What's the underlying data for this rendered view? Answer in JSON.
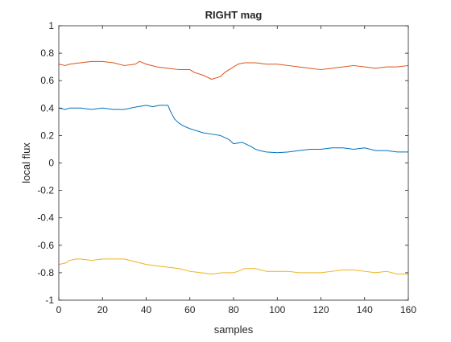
{
  "chart_data": {
    "type": "line",
    "title": "RIGHT mag",
    "xlabel": "samples",
    "ylabel": "local flux",
    "xlim": [
      0,
      160
    ],
    "ylim": [
      -1,
      1
    ],
    "xticks": [
      0,
      20,
      40,
      60,
      80,
      100,
      120,
      140,
      160
    ],
    "yticks": [
      -1,
      -0.8,
      -0.6,
      -0.4,
      -0.2,
      0,
      0.2,
      0.4,
      0.6,
      0.8,
      1
    ],
    "xtick_labels": [
      "0",
      "20",
      "40",
      "60",
      "80",
      "100",
      "120",
      "140",
      "160"
    ],
    "ytick_labels": [
      "-1",
      "-0.8",
      "-0.6",
      "-0.4",
      "-0.2",
      "0",
      "0.2",
      "0.4",
      "0.6",
      "0.8",
      "1"
    ],
    "grid": false,
    "box": true,
    "series": [
      {
        "color": "#0072BD",
        "x": [
          0,
          3,
          5,
          10,
          15,
          20,
          25,
          30,
          33,
          36,
          40,
          43,
          46,
          50,
          51,
          52,
          53,
          55,
          57,
          60,
          62,
          64,
          66,
          70,
          74,
          78,
          80,
          84,
          88,
          90,
          92,
          95,
          100,
          105,
          110,
          115,
          120,
          125,
          130,
          135,
          140,
          145,
          150,
          155,
          160
        ],
        "y": [
          0.4,
          0.39,
          0.4,
          0.4,
          0.39,
          0.4,
          0.39,
          0.39,
          0.4,
          0.41,
          0.42,
          0.41,
          0.42,
          0.42,
          0.38,
          0.35,
          0.32,
          0.29,
          0.27,
          0.25,
          0.24,
          0.23,
          0.22,
          0.21,
          0.2,
          0.17,
          0.14,
          0.15,
          0.12,
          0.1,
          0.09,
          0.08,
          0.075,
          0.08,
          0.09,
          0.1,
          0.1,
          0.11,
          0.11,
          0.1,
          0.11,
          0.09,
          0.09,
          0.08,
          0.08
        ]
      },
      {
        "color": "#D95319",
        "x": [
          0,
          3,
          5,
          10,
          15,
          20,
          25,
          30,
          35,
          37,
          40,
          45,
          50,
          55,
          60,
          62,
          64,
          66,
          70,
          72,
          74,
          76,
          78,
          80,
          82,
          85,
          90,
          95,
          100,
          105,
          110,
          115,
          120,
          125,
          130,
          135,
          140,
          145,
          150,
          155,
          160
        ],
        "y": [
          0.72,
          0.71,
          0.72,
          0.73,
          0.74,
          0.74,
          0.73,
          0.71,
          0.72,
          0.74,
          0.72,
          0.7,
          0.69,
          0.68,
          0.68,
          0.66,
          0.65,
          0.64,
          0.61,
          0.62,
          0.63,
          0.66,
          0.68,
          0.7,
          0.72,
          0.73,
          0.73,
          0.72,
          0.72,
          0.71,
          0.7,
          0.69,
          0.68,
          0.69,
          0.7,
          0.71,
          0.7,
          0.69,
          0.7,
          0.7,
          0.71
        ]
      },
      {
        "color": "#EDB120",
        "x": [
          0,
          3,
          5,
          8,
          10,
          15,
          20,
          25,
          30,
          35,
          40,
          45,
          50,
          55,
          60,
          65,
          70,
          75,
          80,
          82,
          85,
          90,
          95,
          100,
          105,
          110,
          115,
          120,
          125,
          130,
          135,
          140,
          145,
          150,
          155,
          160
        ],
        "y": [
          -0.74,
          -0.73,
          -0.71,
          -0.7,
          -0.7,
          -0.71,
          -0.7,
          -0.7,
          -0.7,
          -0.72,
          -0.74,
          -0.75,
          -0.76,
          -0.77,
          -0.79,
          -0.8,
          -0.81,
          -0.8,
          -0.8,
          -0.79,
          -0.77,
          -0.77,
          -0.79,
          -0.79,
          -0.79,
          -0.8,
          -0.8,
          -0.8,
          -0.79,
          -0.78,
          -0.78,
          -0.79,
          -0.8,
          -0.79,
          -0.81,
          -0.81
        ]
      }
    ]
  }
}
